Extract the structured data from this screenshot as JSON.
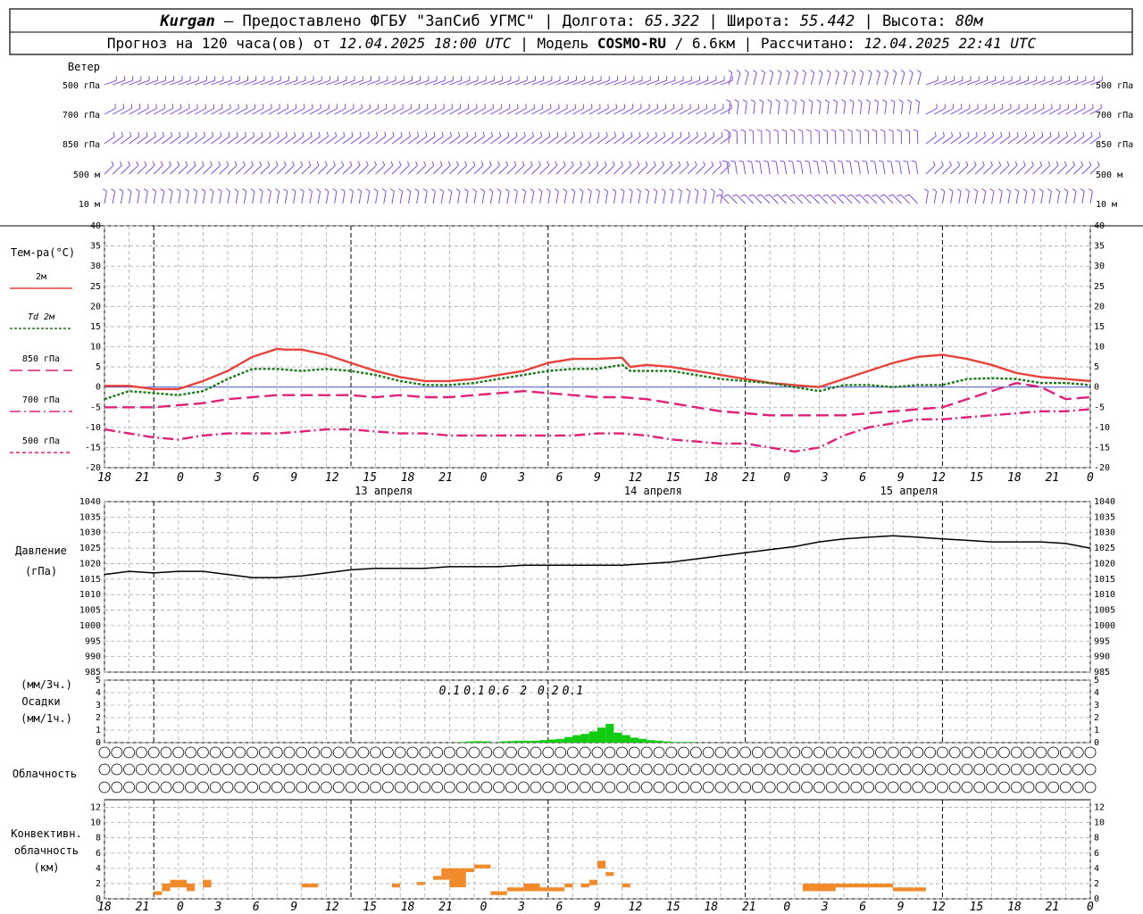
{
  "header": {
    "line1": {
      "station": "Kurgan",
      "dash": " — Предоставлено ФГБУ \"ЗапСиб УГМС\" | Долгота: ",
      "lon": "65.322",
      "lat_label": " | Широта: ",
      "lat": "55.442",
      "alt_label": " | Высота: ",
      "alt": "80м"
    },
    "line2": {
      "prefix": "Прогноз на 120 часа(ов) от ",
      "start": "12.04.2025 18:00 UTC",
      "model_label": " | Модель ",
      "model": "COSMO-RU",
      "res": " / 6.6км",
      "calc_label": " | Рассчитано: ",
      "calc": "12.04.2025 22:41 UTC"
    }
  },
  "wind": {
    "title": "Ветер",
    "levels": [
      "500 гПа",
      "700 гПа",
      "850 гПа",
      "500 м",
      "10 м"
    ]
  },
  "time_axis": {
    "hour_labels": [
      "18",
      "21",
      "0",
      "3",
      "6",
      "9",
      "12",
      "15",
      "18",
      "21",
      "0",
      "3",
      "6",
      "9",
      "12",
      "15",
      "18",
      "21",
      "0",
      "3",
      "6",
      "9",
      "12",
      "15",
      "18",
      "21",
      "0"
    ],
    "day_labels": [
      "13 апреля",
      "14 апреля",
      "15 апреля"
    ]
  },
  "temperature": {
    "title": "Тем-ра(°C)",
    "ylim": [
      -20,
      40
    ],
    "yticks": [
      40,
      35,
      30,
      25,
      20,
      15,
      10,
      5,
      0,
      -5,
      -10,
      -15,
      -20
    ],
    "legend": [
      {
        "label": "2м",
        "italic": false,
        "color": "#e8433a",
        "dash": ""
      },
      {
        "label": "Td 2м",
        "italic": true,
        "color": "#1a7a1a",
        "dash": "3,2"
      },
      {
        "label": "850 гПа",
        "italic": false,
        "color": "#e0207a",
        "dash": "14,6"
      },
      {
        "label": "700 гПа",
        "italic": false,
        "color": "#e0207a",
        "dash": "12,4,2,4"
      },
      {
        "label": "500 гПа",
        "italic": false,
        "color": "#e0207a",
        "dash": "4,3"
      }
    ]
  },
  "pressure": {
    "title": "Давление",
    "unit": "(гПа)",
    "ylim": [
      985,
      1040
    ],
    "yticks": [
      1040,
      1035,
      1030,
      1025,
      1020,
      1015,
      1010,
      1005,
      1000,
      995,
      990,
      985
    ]
  },
  "precip": {
    "title1": "(мм/3ч.)",
    "title2": "Осадки",
    "title3": "(мм/1ч.)",
    "ylim": [
      0,
      5
    ],
    "yticks": [
      5,
      4,
      3,
      2,
      1,
      0
    ],
    "totals": [
      {
        "h": 3,
        "text": "0.1"
      },
      {
        "h": 6,
        "text": "0.1"
      },
      {
        "h": 9,
        "text": "0.6"
      },
      {
        "h": 12,
        "text": "2"
      },
      {
        "h": 15,
        "text": "0.2"
      },
      {
        "h": 18,
        "text": "0.1"
      }
    ]
  },
  "clouds": {
    "title": "Облачность"
  },
  "convective": {
    "title1": "Конвективн.",
    "title2": "облачность",
    "title3": "(км)",
    "ylim": [
      0,
      13
    ],
    "yticks": [
      12,
      10,
      8,
      6,
      4,
      2,
      0
    ]
  },
  "chart_data": {
    "type": "line",
    "x_unit": "hours since 12.04.2025 18:00 UTC",
    "series": [
      {
        "name": "2м",
        "points": [
          [
            0,
            0.3
          ],
          [
            3,
            0.3
          ],
          [
            6,
            -0.5
          ],
          [
            9,
            -0.5
          ],
          [
            12,
            1.5
          ],
          [
            15,
            4
          ],
          [
            18,
            7.5
          ],
          [
            21,
            9.5
          ],
          [
            22,
            9.3
          ],
          [
            24,
            9.3
          ],
          [
            27,
            8
          ],
          [
            30,
            6
          ],
          [
            33,
            4
          ],
          [
            36,
            2.5
          ],
          [
            39,
            1.5
          ],
          [
            42,
            1.5
          ],
          [
            45,
            2
          ],
          [
            48,
            3
          ],
          [
            51,
            4
          ],
          [
            54,
            6
          ],
          [
            57,
            7
          ],
          [
            60,
            7
          ],
          [
            63,
            7.3
          ],
          [
            64,
            5
          ],
          [
            66,
            5.5
          ],
          [
            69,
            5
          ],
          [
            72,
            4
          ],
          [
            75,
            3
          ],
          [
            78,
            2
          ],
          [
            81,
            1
          ],
          [
            84,
            0.5
          ],
          [
            87,
            0
          ],
          [
            90,
            2
          ],
          [
            93,
            4
          ],
          [
            96,
            6
          ],
          [
            99,
            7.5
          ],
          [
            102,
            8
          ],
          [
            105,
            7
          ],
          [
            108,
            5.5
          ],
          [
            111,
            3.5
          ],
          [
            114,
            2.5
          ],
          [
            117,
            2
          ],
          [
            120,
            1.5
          ]
        ]
      },
      {
        "name": "Td 2м",
        "points": [
          [
            0,
            -3
          ],
          [
            3,
            -1
          ],
          [
            6,
            -1.5
          ],
          [
            9,
            -2
          ],
          [
            12,
            -1
          ],
          [
            15,
            2
          ],
          [
            18,
            4.5
          ],
          [
            21,
            4.5
          ],
          [
            24,
            4
          ],
          [
            27,
            4.5
          ],
          [
            30,
            4
          ],
          [
            33,
            3
          ],
          [
            36,
            1.5
          ],
          [
            39,
            0.5
          ],
          [
            42,
            0.5
          ],
          [
            45,
            1
          ],
          [
            48,
            2
          ],
          [
            51,
            3
          ],
          [
            54,
            4
          ],
          [
            57,
            4.5
          ],
          [
            60,
            4.5
          ],
          [
            63,
            5.5
          ],
          [
            64,
            4
          ],
          [
            66,
            4
          ],
          [
            69,
            4
          ],
          [
            72,
            3
          ],
          [
            75,
            2
          ],
          [
            78,
            1.5
          ],
          [
            81,
            1
          ],
          [
            84,
            0
          ],
          [
            87,
            -1
          ],
          [
            90,
            0.5
          ],
          [
            93,
            0.5
          ],
          [
            96,
            0
          ],
          [
            99,
            0.5
          ],
          [
            102,
            0.5
          ],
          [
            105,
            2
          ],
          [
            108,
            2.2
          ],
          [
            111,
            2
          ],
          [
            114,
            1
          ],
          [
            117,
            1
          ],
          [
            120,
            0.5
          ]
        ]
      },
      {
        "name": "850 гПа",
        "points": [
          [
            0,
            -5
          ],
          [
            3,
            -5
          ],
          [
            6,
            -5
          ],
          [
            9,
            -4.5
          ],
          [
            12,
            -4
          ],
          [
            15,
            -3
          ],
          [
            18,
            -2.5
          ],
          [
            21,
            -2
          ],
          [
            24,
            -2
          ],
          [
            27,
            -2
          ],
          [
            30,
            -2
          ],
          [
            33,
            -2.5
          ],
          [
            36,
            -2
          ],
          [
            39,
            -2.5
          ],
          [
            42,
            -2.5
          ],
          [
            45,
            -2
          ],
          [
            48,
            -1.5
          ],
          [
            51,
            -1
          ],
          [
            54,
            -1.5
          ],
          [
            57,
            -2
          ],
          [
            60,
            -2.5
          ],
          [
            63,
            -2.5
          ],
          [
            66,
            -3
          ],
          [
            69,
            -4
          ],
          [
            72,
            -5
          ],
          [
            75,
            -6
          ],
          [
            78,
            -6.5
          ],
          [
            81,
            -7
          ],
          [
            84,
            -7
          ],
          [
            87,
            -7
          ],
          [
            90,
            -7
          ],
          [
            93,
            -6.5
          ],
          [
            96,
            -6
          ],
          [
            99,
            -5.5
          ],
          [
            102,
            -5
          ],
          [
            105,
            -3
          ],
          [
            108,
            -1
          ],
          [
            111,
            1
          ],
          [
            114,
            0
          ],
          [
            117,
            -3
          ],
          [
            120,
            -2.5
          ]
        ]
      },
      {
        "name": "700 гПа",
        "points": [
          [
            0,
            -10.5
          ],
          [
            3,
            -11.5
          ],
          [
            6,
            -12.5
          ],
          [
            9,
            -13
          ],
          [
            12,
            -12
          ],
          [
            15,
            -11.5
          ],
          [
            18,
            -11.5
          ],
          [
            21,
            -11.5
          ],
          [
            24,
            -11
          ],
          [
            27,
            -10.5
          ],
          [
            30,
            -10.5
          ],
          [
            33,
            -11
          ],
          [
            36,
            -11.5
          ],
          [
            39,
            -11.5
          ],
          [
            42,
            -12
          ],
          [
            45,
            -12
          ],
          [
            48,
            -12
          ],
          [
            51,
            -12
          ],
          [
            54,
            -12
          ],
          [
            57,
            -12
          ],
          [
            60,
            -11.5
          ],
          [
            63,
            -11.5
          ],
          [
            66,
            -12
          ],
          [
            69,
            -13
          ],
          [
            72,
            -13.5
          ],
          [
            75,
            -14
          ],
          [
            78,
            -14
          ],
          [
            81,
            -15
          ],
          [
            84,
            -16
          ],
          [
            87,
            -15
          ],
          [
            90,
            -12
          ],
          [
            93,
            -10
          ],
          [
            96,
            -9
          ],
          [
            99,
            -8
          ],
          [
            102,
            -8
          ],
          [
            105,
            -7.5
          ],
          [
            108,
            -7
          ],
          [
            111,
            -6.5
          ],
          [
            114,
            -6
          ],
          [
            117,
            -6
          ],
          [
            120,
            -5.5
          ]
        ]
      },
      {
        "name": "давление",
        "points": [
          [
            0,
            1016.5
          ],
          [
            3,
            1017.5
          ],
          [
            6,
            1017
          ],
          [
            9,
            1017.5
          ],
          [
            12,
            1017.5
          ],
          [
            15,
            1016.5
          ],
          [
            18,
            1015.5
          ],
          [
            21,
            1015.5
          ],
          [
            24,
            1016
          ],
          [
            27,
            1017
          ],
          [
            30,
            1018
          ],
          [
            33,
            1018.5
          ],
          [
            36,
            1018.5
          ],
          [
            39,
            1018.5
          ],
          [
            42,
            1019
          ],
          [
            45,
            1019
          ],
          [
            48,
            1019
          ],
          [
            51,
            1019.5
          ],
          [
            54,
            1019.5
          ],
          [
            57,
            1019.5
          ],
          [
            60,
            1019.5
          ],
          [
            63,
            1019.5
          ],
          [
            66,
            1020
          ],
          [
            69,
            1020.5
          ],
          [
            72,
            1021.5
          ],
          [
            75,
            1022.5
          ],
          [
            78,
            1023.5
          ],
          [
            81,
            1024.5
          ],
          [
            84,
            1025.5
          ],
          [
            87,
            1027
          ],
          [
            90,
            1028
          ],
          [
            93,
            1028.5
          ],
          [
            96,
            1029
          ],
          [
            99,
            1028.5
          ],
          [
            102,
            1028
          ],
          [
            105,
            1027.5
          ],
          [
            108,
            1027
          ],
          [
            111,
            1027
          ],
          [
            114,
            1027
          ],
          [
            117,
            1026.5
          ],
          [
            120,
            1025
          ]
        ]
      }
    ],
    "precip_bars": [
      [
        43,
        0.05
      ],
      [
        44,
        0.1
      ],
      [
        45,
        0.12
      ],
      [
        46,
        0.1
      ],
      [
        48,
        0.1
      ],
      [
        49,
        0.12
      ],
      [
        50,
        0.15
      ],
      [
        51,
        0.15
      ],
      [
        52,
        0.15
      ],
      [
        53,
        0.2
      ],
      [
        54,
        0.25
      ],
      [
        55,
        0.3
      ],
      [
        56,
        0.45
      ],
      [
        57,
        0.6
      ],
      [
        58,
        0.7
      ],
      [
        59,
        0.9
      ],
      [
        60,
        1.2
      ],
      [
        61,
        1.5
      ],
      [
        62,
        0.8
      ],
      [
        63,
        0.6
      ],
      [
        64,
        0.4
      ],
      [
        65,
        0.3
      ],
      [
        66,
        0.2
      ],
      [
        67,
        0.15
      ],
      [
        68,
        0.1
      ],
      [
        69,
        0.05
      ],
      [
        70,
        0.05
      ],
      [
        71,
        0.05
      ]
    ],
    "cloud_rows": [
      "00000000000000000000000000000000000000000000000000000000000000000000000000000000000000000000000000000000000000000000000000000000",
      "00000000000000000000000000000000000000000000000000000000000000000000000000000000000000000000000000000000000000000000000000000000",
      "00000000000000000000000000000000000000000000000000000000000000000000000000000000000000000000000000000000000000000000000000000000"
    ],
    "conv_bars": [
      [
        6,
        7,
        0.5,
        1
      ],
      [
        7,
        8,
        1,
        2
      ],
      [
        8,
        10,
        1.5,
        2.5
      ],
      [
        10,
        11,
        1,
        2
      ],
      [
        12,
        13,
        1.5,
        2.5
      ],
      [
        24,
        26,
        1.5,
        2
      ],
      [
        35,
        36,
        1.5,
        2
      ],
      [
        38,
        39,
        1.8,
        2.2
      ],
      [
        40,
        41,
        2.5,
        3
      ],
      [
        41,
        42,
        2.5,
        4
      ],
      [
        42,
        44,
        1.5,
        4
      ],
      [
        44,
        45,
        3.5,
        4
      ],
      [
        45,
        47,
        4,
        4.5
      ],
      [
        47,
        48,
        0.5,
        1
      ],
      [
        48,
        49,
        0.5,
        1
      ],
      [
        49,
        51,
        1,
        1.5
      ],
      [
        51,
        53,
        1,
        2
      ],
      [
        53,
        56,
        1,
        1.5
      ],
      [
        56,
        57,
        1.5,
        2
      ],
      [
        58,
        59,
        1.5,
        2
      ],
      [
        59,
        60,
        1.8,
        2.5
      ],
      [
        60,
        61,
        4,
        5
      ],
      [
        61,
        62,
        3,
        3.5
      ],
      [
        63,
        64,
        1.5,
        2
      ],
      [
        85,
        86,
        1,
        2
      ],
      [
        86,
        89,
        1,
        2
      ],
      [
        89,
        93,
        1.5,
        2
      ],
      [
        93,
        96,
        1.5,
        2
      ],
      [
        96,
        100,
        1,
        1.5
      ]
    ]
  },
  "colors": {
    "wind": "#7a3ce0",
    "precip": "#11cc11",
    "conv": "#f08a2a",
    "pressure": "#000000",
    "grid": "#aaaaaa"
  }
}
